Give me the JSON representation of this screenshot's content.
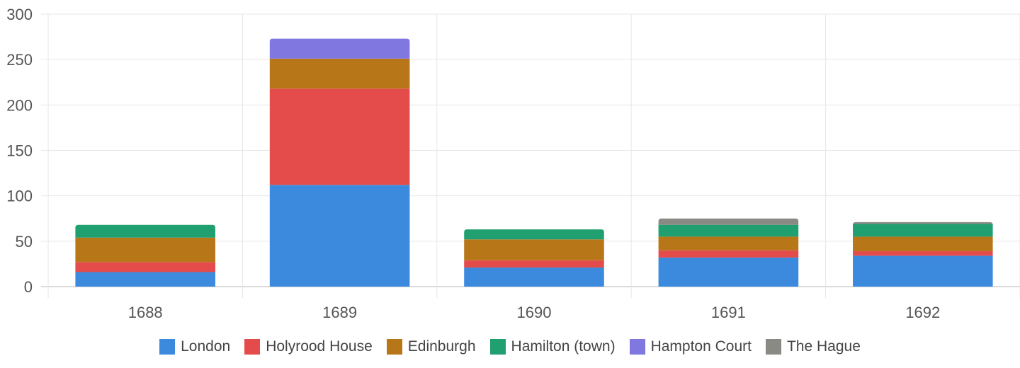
{
  "chart_data": {
    "type": "bar",
    "stacked": true,
    "categories": [
      "1688",
      "1689",
      "1690",
      "1691",
      "1692"
    ],
    "series": [
      {
        "name": "London",
        "color": "#3b8ade",
        "values": [
          16,
          112,
          21,
          32,
          34
        ]
      },
      {
        "name": "Holyrood House",
        "color": "#e44c4c",
        "values": [
          11,
          106,
          8,
          8,
          5
        ]
      },
      {
        "name": "Edinburgh",
        "color": "#b77719",
        "values": [
          27,
          33,
          23,
          15,
          16
        ]
      },
      {
        "name": "Hamilton (town)",
        "color": "#20a070",
        "values": [
          14,
          0,
          11,
          13,
          14
        ]
      },
      {
        "name": "Hampton Court",
        "color": "#8078e0",
        "values": [
          0,
          22,
          0,
          0,
          0
        ]
      },
      {
        "name": "The Hague",
        "color": "#8a8a85",
        "values": [
          0,
          0,
          0,
          7,
          2
        ]
      }
    ],
    "ylim": [
      0,
      300
    ],
    "yticks": [
      0,
      50,
      100,
      150,
      200,
      250,
      300
    ],
    "grid": true,
    "legend_position": "bottom"
  }
}
